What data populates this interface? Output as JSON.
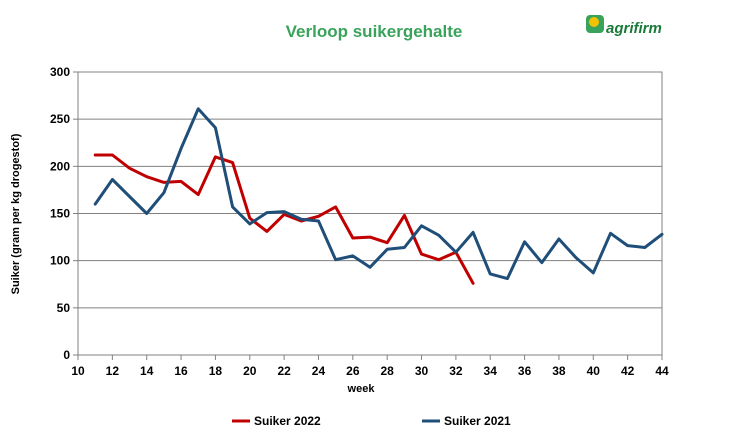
{
  "logo": {
    "text": "agrifirm",
    "colors": {
      "green": "#3aa35b",
      "yellow": "#f2c200"
    }
  },
  "chart_data": {
    "type": "line",
    "title": "Verloop suikergehalte",
    "xlabel": "week",
    "ylabel": "Suiker (gram per kg drogestof)",
    "xlim": [
      10,
      44
    ],
    "ylim": [
      0,
      300
    ],
    "xticks": [
      10,
      12,
      14,
      16,
      18,
      20,
      22,
      24,
      26,
      28,
      30,
      32,
      34,
      36,
      38,
      40,
      42,
      44
    ],
    "yticks": [
      0,
      50,
      100,
      150,
      200,
      250,
      300
    ],
    "grid": true,
    "legend_position": "bottom",
    "series": [
      {
        "name": "Suiker 2022",
        "color": "#c00000",
        "x": [
          11,
          12,
          13,
          14,
          15,
          16,
          17,
          18,
          19,
          20,
          21,
          22,
          23,
          24,
          25,
          26,
          27,
          28,
          29,
          30,
          31,
          32,
          33
        ],
        "y": [
          212,
          212,
          198,
          189,
          183,
          184,
          170,
          210,
          204,
          145,
          131,
          149,
          142,
          147,
          157,
          124,
          125,
          119,
          148,
          107,
          101,
          109,
          76
        ]
      },
      {
        "name": "Suiker 2021",
        "color": "#1f4e79",
        "x": [
          11,
          12,
          13,
          14,
          15,
          16,
          17,
          18,
          19,
          20,
          21,
          22,
          23,
          24,
          25,
          26,
          27,
          28,
          29,
          30,
          31,
          32,
          33,
          34,
          35,
          36,
          37,
          38,
          39,
          40,
          41,
          42,
          43,
          44
        ],
        "y": [
          160,
          186,
          168,
          150,
          172,
          219,
          261,
          241,
          157,
          139,
          151,
          152,
          144,
          142,
          101,
          105,
          93,
          112,
          114,
          137,
          127,
          109,
          130,
          86,
          81,
          120,
          98,
          123,
          103,
          87,
          129,
          116,
          114,
          128
        ]
      }
    ]
  }
}
